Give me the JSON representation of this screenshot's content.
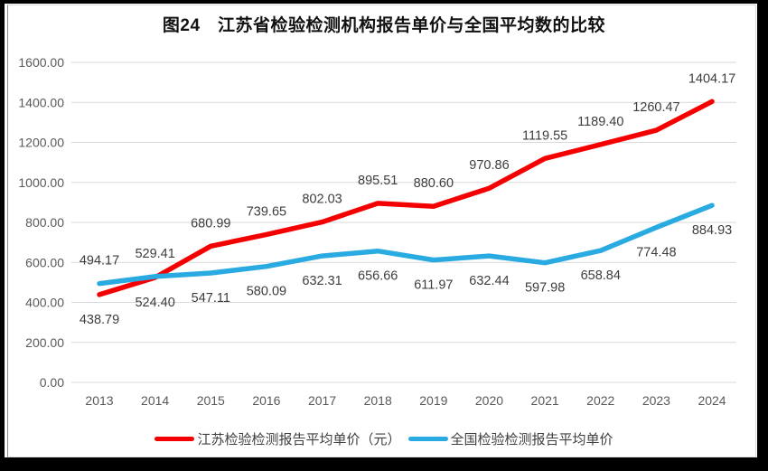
{
  "page": {
    "title": "图24　江苏省检验检测机构报告单价与全国平均数的比较"
  },
  "chart_data": {
    "type": "line",
    "title": "图24　江苏省检验检测机构报告单价与全国平均数的比较",
    "categories": [
      "2013",
      "2014",
      "2015",
      "2016",
      "2017",
      "2018",
      "2019",
      "2020",
      "2021",
      "2022",
      "2023",
      "2024"
    ],
    "series": [
      {
        "name": "江苏检验检测报告平均单价（元）",
        "color": "#f40000",
        "values": [
          438.79,
          524.4,
          680.99,
          739.65,
          802.03,
          895.51,
          880.6,
          970.86,
          1119.55,
          1189.4,
          1260.47,
          1404.17
        ],
        "point_labels": [
          "438.79",
          "524.40",
          "680.99",
          "739.65",
          "802.03",
          "895.51",
          "880.60",
          "970.86",
          "1119.55",
          "1189.40",
          "1260.47",
          "1404.17"
        ]
      },
      {
        "name": "全国检验检测报告平均单价",
        "color": "#29abe2",
        "values": [
          494.17,
          529.41,
          547.11,
          580.09,
          632.31,
          656.66,
          611.97,
          632.44,
          597.98,
          658.84,
          774.48,
          884.93
        ],
        "point_labels": [
          "494.17",
          "529.41",
          "547.11",
          "580.09",
          "632.31",
          "656.66",
          "611.97",
          "632.44",
          "597.98",
          "658.84",
          "774.48",
          "884.93"
        ]
      }
    ],
    "ylim": [
      0,
      1600
    ],
    "ytick_step": 200,
    "y_ticks": [
      {
        "value": 0,
        "label": "0.00"
      },
      {
        "value": 200,
        "label": "200.00"
      },
      {
        "value": 400,
        "label": "400.00"
      },
      {
        "value": 600,
        "label": "600.00"
      },
      {
        "value": 800,
        "label": "800.00"
      },
      {
        "value": 1000,
        "label": "1000.00"
      },
      {
        "value": 1200,
        "label": "1200.00"
      },
      {
        "value": 1400,
        "label": "1400.00"
      },
      {
        "value": 1600,
        "label": "1600.00"
      }
    ],
    "grid": "horizontal",
    "gridline_color": "#d9d9d9",
    "tick_label_color": "#595959",
    "data_label_color": "#3d3d3d",
    "legend_position": "bottom",
    "xlabel": "",
    "ylabel": ""
  }
}
